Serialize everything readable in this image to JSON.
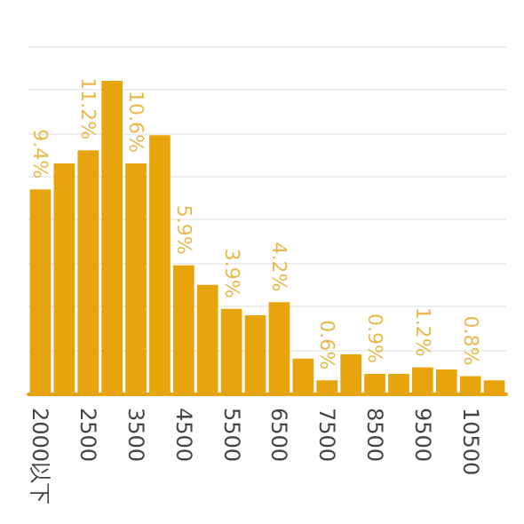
{
  "chart_data": {
    "type": "bar",
    "categories": [
      "2000以下",
      null,
      "2500",
      null,
      "3500",
      null,
      "4500",
      null,
      "5500",
      null,
      "6500",
      null,
      "7500",
      null,
      "8500",
      null,
      "9500",
      null,
      "10500",
      null
    ],
    "values": [
      9.4,
      10.6,
      11.2,
      14.4,
      10.6,
      11.9,
      5.9,
      5.0,
      3.9,
      3.6,
      4.2,
      1.6,
      0.6,
      1.8,
      0.9,
      0.9,
      1.2,
      1.1,
      0.8,
      0.6
    ],
    "value_labels": [
      "9.4%",
      null,
      "11.2%",
      null,
      "10.6%",
      null,
      "5.9%",
      null,
      "3.9%",
      null,
      "4.2%",
      null,
      "0.6%",
      null,
      "0.9%",
      null,
      "1.2%",
      null,
      "0.8%",
      null
    ],
    "color": "#e8a40c",
    "ylim": [
      0,
      16
    ],
    "yticks": [
      {
        "value": 0,
        "label": null
      },
      {
        "value": 2,
        "label": null
      },
      {
        "value": 4,
        "label": null
      },
      {
        "value": 6,
        "label": null
      },
      {
        "value": 8,
        "label": null
      },
      {
        "value": 10,
        "label": null
      },
      {
        "value": 12,
        "label": null
      },
      {
        "value": 14,
        "label": null
      },
      {
        "value": 16,
        "label": null
      }
    ],
    "grid": "y",
    "tick_labels": "x"
  }
}
